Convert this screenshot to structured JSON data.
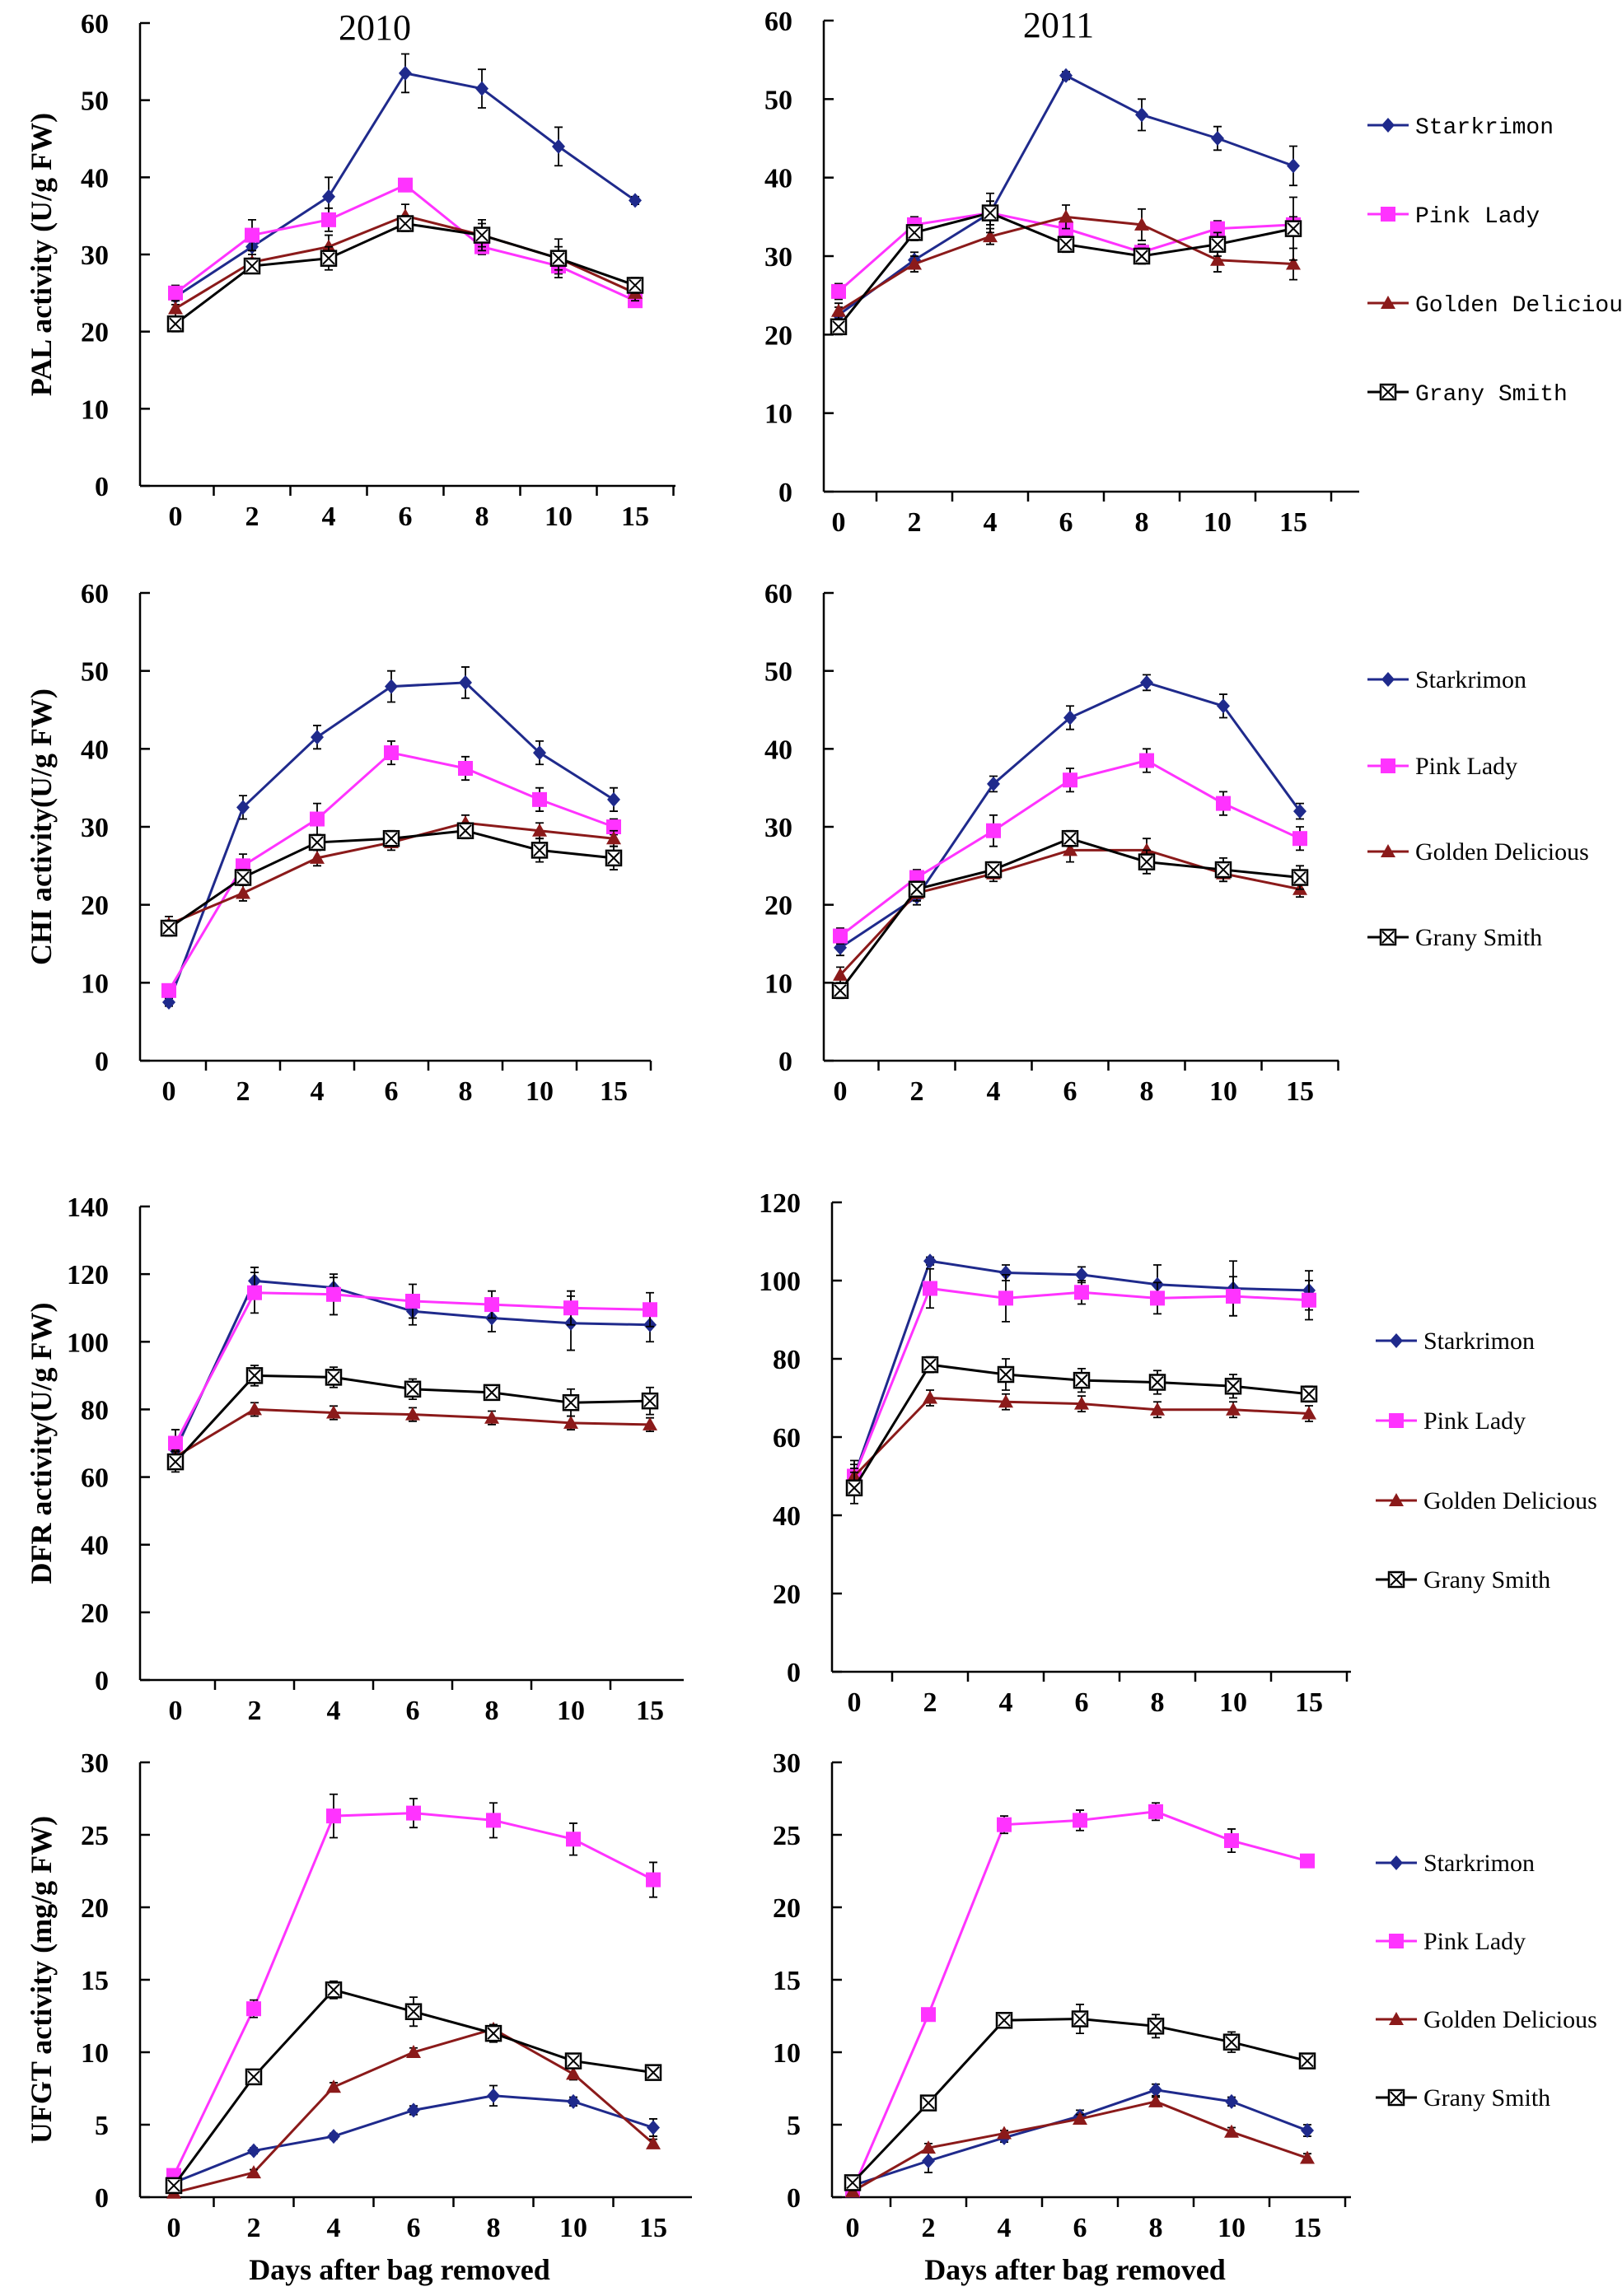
{
  "colors": {
    "Starkrimon": "#1f2a8c",
    "Pink Lady": "#ff33ff",
    "Golden Delicious": "#8b1a1a",
    "Grany Smith": "#000000"
  },
  "chart_data": [
    {
      "type": "line",
      "title": "2010",
      "ylabel": "PAL activity (U/g FW)",
      "xlabel": "",
      "categories": [
        "0",
        "2",
        "4",
        "6",
        "8",
        "10",
        "15"
      ],
      "ylim": [
        0,
        60
      ],
      "yticks": [
        0,
        10,
        20,
        30,
        40,
        50,
        60
      ],
      "legend": [
        "Starkrimon",
        "Pink Lady",
        "Golden Delicious",
        "Grany Smith"
      ],
      "legend_position": "right",
      "series": [
        {
          "name": "Starkrimon",
          "values": [
            24.5,
            31,
            37.5,
            53.5,
            51.5,
            44,
            37
          ],
          "errors": [
            1,
            1.5,
            2.5,
            2.5,
            2.5,
            2.5,
            0.5
          ]
        },
        {
          "name": "Pink Lady",
          "values": [
            25,
            32.5,
            34.5,
            39,
            31,
            28.5,
            24
          ],
          "errors": [
            1,
            2,
            1.5,
            0.5,
            1,
            1,
            0.5
          ]
        },
        {
          "name": "Golden Delicious",
          "values": [
            23,
            29,
            31,
            35,
            32.5,
            29.5,
            25
          ],
          "errors": [
            1,
            1,
            1.5,
            1.5,
            1.5,
            1.5,
            1
          ]
        },
        {
          "name": "Grany Smith",
          "values": [
            21,
            28.5,
            29.5,
            34,
            32.5,
            29.5,
            26
          ],
          "errors": [
            1,
            0.5,
            1.5,
            1,
            2,
            2.5,
            1
          ]
        }
      ]
    },
    {
      "type": "line",
      "title": "2011",
      "ylabel": "",
      "xlabel": "",
      "categories": [
        "0",
        "2",
        "4",
        "6",
        "8",
        "10",
        "15"
      ],
      "ylim": [
        0,
        60
      ],
      "yticks": [
        0,
        10,
        20,
        30,
        40,
        50,
        60
      ],
      "legend": [
        "Starkrimon",
        "Pink Lady",
        "Golden Delicious",
        "Grany Smith"
      ],
      "legend_position": "right",
      "series": [
        {
          "name": "Starkrimon",
          "values": [
            22.5,
            29.5,
            35.5,
            53,
            48,
            45,
            41.5
          ],
          "errors": [
            1,
            1,
            1.5,
            0.5,
            2,
            1.5,
            2.5
          ]
        },
        {
          "name": "Pink Lady",
          "values": [
            25.5,
            34,
            35.5,
            33.5,
            30.5,
            33.5,
            34
          ],
          "errors": [
            1,
            1,
            1.5,
            1,
            1,
            1,
            1
          ]
        },
        {
          "name": "Golden Delicious",
          "values": [
            23,
            29,
            32.5,
            35,
            34,
            29.5,
            29
          ],
          "errors": [
            1,
            1,
            1,
            1.5,
            2,
            1.5,
            2
          ]
        },
        {
          "name": "Grany Smith",
          "values": [
            21,
            33,
            35.5,
            31.5,
            30,
            31.5,
            33.5
          ],
          "errors": [
            1,
            1,
            2.5,
            1,
            1,
            1.5,
            4
          ]
        }
      ]
    },
    {
      "type": "line",
      "title": "",
      "ylabel": "CHI activity(U/g FW)",
      "xlabel": "",
      "categories": [
        "0",
        "2",
        "4",
        "6",
        "8",
        "10",
        "15"
      ],
      "ylim": [
        0,
        60
      ],
      "yticks": [
        0,
        10,
        20,
        30,
        40,
        50,
        60
      ],
      "legend": [
        "Starkrimon",
        "Pink Lady",
        "Golden Delicious",
        "Grany Smith"
      ],
      "legend_position": "right",
      "series": [
        {
          "name": "Starkrimon",
          "values": [
            7.5,
            32.5,
            41.5,
            48,
            48.5,
            39.5,
            33.5
          ],
          "errors": [
            0.5,
            1.5,
            1.5,
            2,
            2,
            1.5,
            1.5
          ]
        },
        {
          "name": "Pink Lady",
          "values": [
            9,
            25,
            31,
            39.5,
            37.5,
            33.5,
            30
          ],
          "errors": [
            0.5,
            1.5,
            2,
            1.5,
            1.5,
            1.5,
            1
          ]
        },
        {
          "name": "Golden Delicious",
          "values": [
            17.5,
            21.5,
            26,
            28,
            30.5,
            29.5,
            28.5
          ],
          "errors": [
            1,
            1,
            1,
            1,
            1,
            1,
            1
          ]
        },
        {
          "name": "Grany Smith",
          "values": [
            17,
            23.5,
            28,
            28.5,
            29.5,
            27,
            26
          ],
          "errors": [
            1,
            1,
            1,
            1,
            1,
            1.5,
            1.5
          ]
        }
      ]
    },
    {
      "type": "line",
      "title": "",
      "ylabel": "",
      "xlabel": "",
      "categories": [
        "0",
        "2",
        "4",
        "6",
        "8",
        "10",
        "15"
      ],
      "ylim": [
        0,
        60
      ],
      "yticks": [
        0,
        10,
        20,
        30,
        40,
        50,
        60
      ],
      "legend": [
        "Starkrimon",
        "Pink Lady",
        "Golden Delicious",
        "Grany Smith"
      ],
      "legend_position": "right",
      "series": [
        {
          "name": "Starkrimon",
          "values": [
            14.5,
            21,
            35.5,
            44,
            48.5,
            45.5,
            32
          ],
          "errors": [
            1,
            1,
            1,
            1.5,
            1,
            1.5,
            1
          ]
        },
        {
          "name": "Pink Lady",
          "values": [
            16,
            23.5,
            29.5,
            36,
            38.5,
            33,
            28.5
          ],
          "errors": [
            1,
            1,
            2,
            1.5,
            1.5,
            1.5,
            1.5
          ]
        },
        {
          "name": "Golden Delicious",
          "values": [
            11,
            21.5,
            24,
            27,
            27,
            24,
            22
          ],
          "errors": [
            1,
            1,
            1,
            1.5,
            1.5,
            1,
            1
          ]
        },
        {
          "name": "Grany Smith",
          "values": [
            9,
            22,
            24.5,
            28.5,
            25.5,
            24.5,
            23.5
          ],
          "errors": [
            1,
            1,
            1,
            1,
            1.5,
            1.5,
            1.5
          ]
        }
      ]
    },
    {
      "type": "line",
      "title": "",
      "ylabel": "DFR activity(U/g FW)",
      "xlabel": "",
      "categories": [
        "0",
        "2",
        "4",
        "6",
        "8",
        "10",
        "15"
      ],
      "ylim": [
        0,
        140
      ],
      "yticks": [
        0,
        20,
        40,
        60,
        80,
        100,
        120,
        140
      ],
      "legend": [
        "Starkrimon",
        "Pink Lady",
        "Golden Delicious",
        "Grany Smith"
      ],
      "legend_position": "right",
      "series": [
        {
          "name": "Starkrimon",
          "values": [
            68,
            118,
            116,
            109,
            107,
            105.5,
            105
          ],
          "errors": [
            3,
            4,
            3,
            4,
            4,
            8,
            5
          ]
        },
        {
          "name": "Pink Lady",
          "values": [
            70,
            114.5,
            114,
            112,
            111,
            110,
            109.5
          ],
          "errors": [
            4,
            6,
            6,
            5,
            4,
            5,
            5
          ]
        },
        {
          "name": "Golden Delicious",
          "values": [
            66,
            80,
            79,
            78.5,
            77.5,
            76,
            75.5
          ],
          "errors": [
            2,
            2,
            2,
            2,
            2,
            2,
            2
          ]
        },
        {
          "name": "Grany Smith",
          "values": [
            64.5,
            90,
            89.5,
            86,
            85,
            82,
            82.5
          ],
          "errors": [
            3,
            3,
            3,
            3,
            2,
            4,
            4
          ]
        }
      ]
    },
    {
      "type": "line",
      "title": "",
      "ylabel": "",
      "xlabel": "",
      "categories": [
        "0",
        "2",
        "4",
        "6",
        "8",
        "10",
        "15"
      ],
      "ylim": [
        0,
        120
      ],
      "yticks": [
        0,
        20,
        40,
        60,
        80,
        100,
        120
      ],
      "legend": [
        "Starkrimon",
        "Pink Lady",
        "Golden Delicious",
        "Grany Smith"
      ],
      "legend_position": "right",
      "series": [
        {
          "name": "Starkrimon",
          "values": [
            50,
            105,
            102,
            101.5,
            99,
            98,
            97.5
          ],
          "errors": [
            3,
            1,
            2,
            2,
            5,
            7,
            5
          ]
        },
        {
          "name": "Pink Lady",
          "values": [
            50,
            98,
            95.5,
            97,
            95.5,
            96,
            95
          ],
          "errors": [
            4,
            5,
            6,
            3,
            4,
            5,
            5
          ]
        },
        {
          "name": "Golden Delicious",
          "values": [
            50,
            70,
            69,
            68.5,
            67,
            67,
            66
          ],
          "errors": [
            2,
            2,
            2,
            2,
            2,
            2,
            2
          ]
        },
        {
          "name": "Grany Smith",
          "values": [
            47,
            78.5,
            76,
            74.5,
            74,
            73,
            71
          ],
          "errors": [
            4,
            2,
            4,
            3,
            3,
            3,
            2
          ]
        }
      ]
    },
    {
      "type": "line",
      "title": "",
      "ylabel": "UFGT activity (mg/g FW)",
      "xlabel": "Days after bag removed",
      "categories": [
        "0",
        "2",
        "4",
        "6",
        "8",
        "10",
        "15"
      ],
      "ylim": [
        0,
        30
      ],
      "yticks": [
        0,
        5,
        10,
        15,
        20,
        25,
        30
      ],
      "legend": [
        "Starkrimon",
        "Pink Lady",
        "Golden Delicious",
        "Grany Smith"
      ],
      "legend_position": "right",
      "series": [
        {
          "name": "Starkrimon",
          "values": [
            1,
            3.2,
            4.2,
            6,
            7,
            6.6,
            4.8
          ],
          "errors": [
            0.2,
            0.2,
            0.2,
            0.3,
            0.7,
            0.3,
            0.6
          ]
        },
        {
          "name": "Pink Lady",
          "values": [
            1.5,
            13,
            26.3,
            26.5,
            26,
            24.7,
            21.9
          ],
          "errors": [
            0.3,
            0.6,
            1.5,
            1,
            1.2,
            1.1,
            1.2
          ]
        },
        {
          "name": "Golden Delicious",
          "values": [
            0.3,
            1.7,
            7.6,
            10,
            11.6,
            8.5,
            3.7
          ],
          "errors": [
            0.1,
            0.2,
            0.3,
            0.3,
            0.3,
            0.4,
            0.3
          ]
        },
        {
          "name": "Grany Smith",
          "values": [
            0.8,
            8.3,
            14.3,
            12.8,
            11.3,
            9.4,
            8.6
          ],
          "errors": [
            0.2,
            0.4,
            0.6,
            1,
            0.6,
            0.4,
            0.3
          ]
        }
      ]
    },
    {
      "type": "line",
      "title": "",
      "ylabel": "",
      "xlabel": "Days after bag removed",
      "categories": [
        "0",
        "2",
        "4",
        "6",
        "8",
        "10",
        "15"
      ],
      "ylim": [
        0,
        30
      ],
      "yticks": [
        0,
        5,
        10,
        15,
        20,
        25,
        30
      ],
      "legend": [
        "Starkrimon",
        "Pink Lady",
        "Golden Delicious",
        "Grany Smith"
      ],
      "legend_position": "right",
      "series": [
        {
          "name": "Starkrimon",
          "values": [
            0.8,
            2.5,
            4.1,
            5.6,
            7.4,
            6.6,
            4.6
          ],
          "errors": [
            0.2,
            0.8,
            0.3,
            0.4,
            0.4,
            0.3,
            0.4
          ]
        },
        {
          "name": "Pink Lady",
          "values": [
            0.5,
            12.6,
            25.7,
            26,
            26.6,
            24.6,
            23.2
          ],
          "errors": [
            0.2,
            0.3,
            0.6,
            0.7,
            0.6,
            0.8,
            0.3
          ]
        },
        {
          "name": "Golden Delicious",
          "values": [
            0.4,
            3.4,
            4.4,
            5.4,
            6.6,
            4.5,
            2.7
          ],
          "errors": [
            0.1,
            0.3,
            0.2,
            0.3,
            0.3,
            0.3,
            0.3
          ]
        },
        {
          "name": "Grany Smith",
          "values": [
            1,
            6.5,
            12.2,
            12.3,
            11.8,
            10.7,
            9.4
          ],
          "errors": [
            0.2,
            0.3,
            0.5,
            1,
            0.8,
            0.7,
            0.4
          ]
        }
      ]
    }
  ]
}
